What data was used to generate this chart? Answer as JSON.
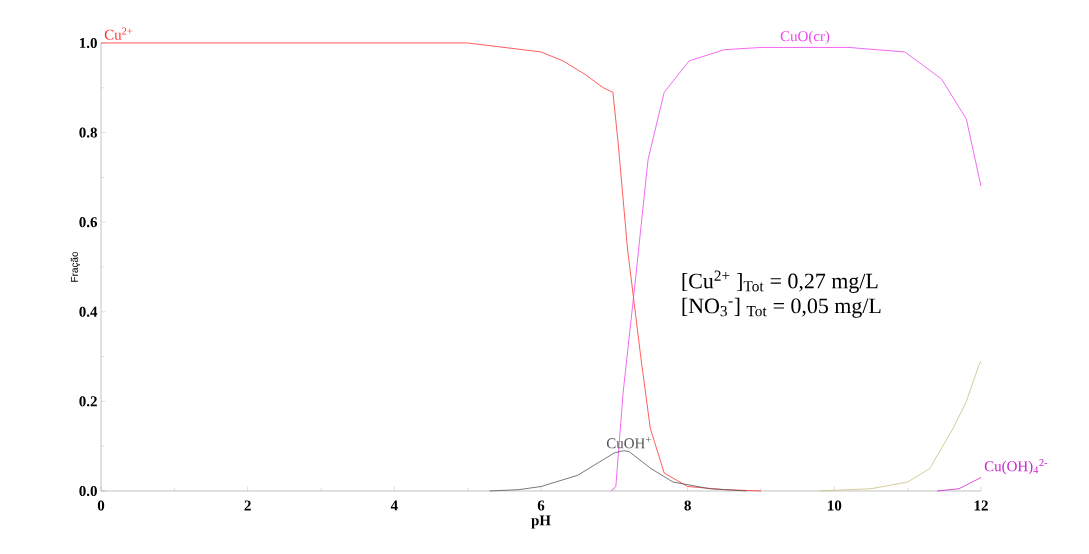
{
  "chart_data": {
    "type": "line",
    "xlabel": "pH",
    "ylabel": "Fração",
    "xlim": [
      0,
      12
    ],
    "ylim": [
      0,
      1.0
    ],
    "xticks": [
      0,
      2,
      4,
      6,
      8,
      10,
      12
    ],
    "yticks": [
      {
        "value": 0,
        "label": "0.0"
      },
      {
        "value": 0.2,
        "label": "0.2"
      },
      {
        "value": 0.4,
        "label": "0.4"
      },
      {
        "value": 0.6,
        "label": "0.6"
      },
      {
        "value": 0.8,
        "label": "0.8"
      },
      {
        "value": 1.0,
        "label": "1.0"
      }
    ],
    "grid": false,
    "marker": "none",
    "line_style": "solid",
    "series": [
      {
        "name": "Cu$^{2+}$",
        "color": "#ff3333",
        "x": [
          0,
          5.0,
          5.5,
          6.0,
          6.3,
          6.6,
          6.85,
          6.98,
          7.05,
          7.18,
          7.36,
          7.49,
          7.68,
          8.0,
          8.5,
          9.0
        ],
        "values": [
          1.0,
          1.0,
          0.99,
          0.98,
          0.96,
          0.93,
          0.9,
          0.89,
          0.78,
          0.54,
          0.3,
          0.14,
          0.04,
          0.01,
          0.003,
          0
        ]
      },
      {
        "name": "CuO(cr)",
        "color": "#ee44ee",
        "x": [
          6.95,
          7.02,
          7.12,
          7.28,
          7.46,
          7.68,
          8.02,
          8.5,
          9.0,
          9.6,
          10.2,
          10.96,
          11.46,
          11.8,
          12.0
        ],
        "values": [
          0,
          0.01,
          0.22,
          0.46,
          0.74,
          0.89,
          0.96,
          0.985,
          0.99,
          0.99,
          0.99,
          0.98,
          0.92,
          0.83,
          0.68
        ]
      },
      {
        "name": "CuOH$^{+}$",
        "color": "#555555",
        "x": [
          5.3,
          5.7,
          6.0,
          6.5,
          6.8,
          7.0,
          7.13,
          7.2,
          7.5,
          7.8,
          8.3,
          8.8
        ],
        "values": [
          0,
          0.003,
          0.01,
          0.035,
          0.065,
          0.085,
          0.09,
          0.088,
          0.05,
          0.02,
          0.005,
          0
        ]
      },
      {
        "color": "#c8c080",
        "x": [
          9.8,
          10.5,
          11.0,
          11.3,
          11.62,
          11.8,
          11.97,
          12.0
        ],
        "values": [
          0,
          0.005,
          0.02,
          0.05,
          0.14,
          0.2,
          0.28,
          0.29
        ]
      },
      {
        "name": "Cu(OH)$_{4}$$^{2-}$",
        "color": "#cc22cc",
        "x": [
          11.4,
          11.7,
          12.0
        ],
        "values": [
          0,
          0.005,
          0.03
        ]
      }
    ],
    "annotations": [
      "[Cu$^{2+}$ ]$_{Tot}$ = 0,27 mg/L",
      "[NO$_{3}$$^{-}$] $_{Tot}$ = 0,05 mg/L"
    ]
  }
}
